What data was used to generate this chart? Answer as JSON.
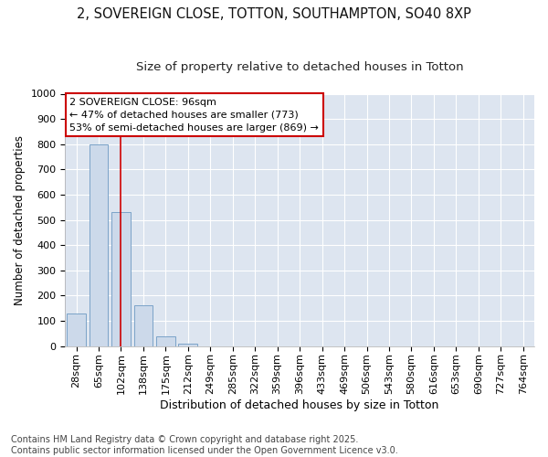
{
  "title1": "2, SOVEREIGN CLOSE, TOTTON, SOUTHAMPTON, SO40 8XP",
  "title2": "Size of property relative to detached houses in Totton",
  "xlabel": "Distribution of detached houses by size in Totton",
  "ylabel": "Number of detached properties",
  "categories": [
    "28sqm",
    "65sqm",
    "102sqm",
    "138sqm",
    "175sqm",
    "212sqm",
    "249sqm",
    "285sqm",
    "322sqm",
    "359sqm",
    "396sqm",
    "433sqm",
    "469sqm",
    "506sqm",
    "543sqm",
    "580sqm",
    "616sqm",
    "653sqm",
    "690sqm",
    "727sqm",
    "764sqm"
  ],
  "values": [
    130,
    800,
    530,
    160,
    40,
    10,
    0,
    0,
    0,
    0,
    0,
    0,
    0,
    0,
    0,
    0,
    0,
    0,
    0,
    0,
    0
  ],
  "bar_color": "#ccd9ea",
  "bar_edge_color": "#7ba3c8",
  "vline_x_index": 2,
  "vline_color": "#cc0000",
  "annotation_box_color": "#cc0000",
  "annotation_lines": [
    "2 SOVEREIGN CLOSE: 96sqm",
    "← 47% of detached houses are smaller (773)",
    "53% of semi-detached houses are larger (869) →"
  ],
  "ylim": [
    0,
    1000
  ],
  "yticks": [
    0,
    100,
    200,
    300,
    400,
    500,
    600,
    700,
    800,
    900,
    1000
  ],
  "background_color": "#dde5f0",
  "grid_color": "#ffffff",
  "footnote": "Contains HM Land Registry data © Crown copyright and database right 2025.\nContains public sector information licensed under the Open Government Licence v3.0.",
  "title1_fontsize": 10.5,
  "title2_fontsize": 9.5,
  "xlabel_fontsize": 9,
  "ylabel_fontsize": 8.5,
  "annot_fontsize": 8,
  "tick_fontsize": 8,
  "footnote_fontsize": 7
}
